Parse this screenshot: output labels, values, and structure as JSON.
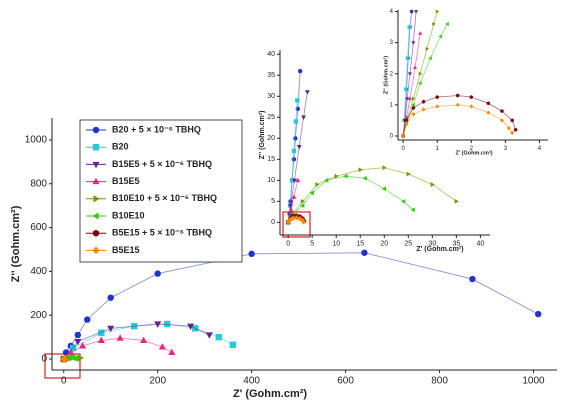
{
  "chart_data": [
    {
      "type": "scatter",
      "xlabel": "Z' (Gohm.cm²)",
      "ylabel": "Z'' (Gohm.cm²)",
      "xlim": [
        -25,
        1050
      ],
      "ylim": [
        -50,
        1100
      ],
      "xticks": [
        0,
        200,
        400,
        600,
        800,
        1000
      ],
      "yticks": [
        0,
        200,
        400,
        600,
        800,
        1000
      ],
      "legend": "upper left",
      "series": [
        {
          "name": "B20 + 5 × 10⁻⁶ TBHQ",
          "color": "#2233cc",
          "marker": "circle",
          "x": [
            0,
            5,
            15,
            30,
            50,
            100,
            200,
            400,
            640,
            870,
            1010
          ],
          "values": [
            0,
            30,
            60,
            110,
            180,
            280,
            390,
            480,
            485,
            365,
            205
          ]
        },
        {
          "name": "B20",
          "color": "#22ccdd",
          "marker": "square",
          "x": [
            0,
            20,
            80,
            150,
            220,
            280,
            330,
            360
          ],
          "values": [
            0,
            50,
            120,
            150,
            160,
            140,
            100,
            65
          ]
        },
        {
          "name": "B15E5 + 5 × 10⁻⁶ TBHQ",
          "color": "#662288",
          "marker": "triangle-down",
          "x": [
            0,
            30,
            100,
            200,
            270,
            310
          ],
          "values": [
            0,
            80,
            140,
            160,
            150,
            110
          ]
        },
        {
          "name": "B15E5",
          "color": "#ee2288",
          "marker": "triangle",
          "x": [
            0,
            15,
            40,
            80,
            120,
            170,
            210,
            230
          ],
          "values": [
            0,
            30,
            60,
            85,
            95,
            85,
            55,
            30
          ]
        },
        {
          "name": "B10E10 + 5 × 10⁻⁶ TBHQ",
          "color": "#779900",
          "marker": "triangle-right",
          "x": [
            0,
            10,
            20,
            35
          ],
          "values": [
            0,
            5,
            8,
            5
          ]
        },
        {
          "name": "B10E10",
          "color": "#33cc11",
          "marker": "triangle-left",
          "x": [
            0,
            10,
            20,
            26
          ],
          "values": [
            0,
            5,
            6,
            3
          ]
        },
        {
          "name": "B5E15 + 5 × 10⁻⁶ TBHQ",
          "color": "#7a0a0a",
          "marker": "hexagon",
          "x": [
            0,
            2,
            3.3
          ],
          "values": [
            0,
            1,
            0.3
          ]
        },
        {
          "name": "B5E15",
          "color": "#ff8800",
          "marker": "diamond",
          "x": [
            0,
            2,
            3.2
          ],
          "values": [
            0,
            0.8,
            0.1
          ]
        }
      ]
    },
    {
      "type": "scatter",
      "xlabel": "Z' (Gohm.cm²)",
      "ylabel": "Z'' (Gohm.cm²)",
      "xlim": [
        -1.7,
        42
      ],
      "ylim": [
        -3,
        41
      ],
      "xticks": [
        0,
        5,
        10,
        15,
        20,
        25,
        30,
        35,
        40
      ],
      "yticks": [
        0,
        5,
        10,
        15,
        20,
        25,
        30,
        35,
        40
      ],
      "series": [
        {
          "color": "#2233cc",
          "marker": "circle",
          "x": [
            0,
            0.3,
            0.5,
            0.8,
            1.2,
            1.5,
            2,
            2.5
          ],
          "values": [
            0,
            2,
            5,
            10,
            15,
            20,
            27,
            36
          ]
        },
        {
          "color": "#22ccdd",
          "marker": "square",
          "x": [
            0,
            0.4,
            0.8,
            1.2,
            1.6,
            1.9
          ],
          "values": [
            0,
            4,
            10,
            17,
            24,
            29
          ]
        },
        {
          "color": "#662288",
          "marker": "triangle-down",
          "x": [
            0,
            0.5,
            1.3,
            2.3,
            3.2,
            4
          ],
          "values": [
            0,
            4,
            10,
            18,
            25,
            31
          ]
        },
        {
          "color": "#ee2288",
          "marker": "triangle",
          "x": [
            0,
            0.6,
            1.2,
            2
          ],
          "values": [
            0,
            3,
            6,
            10
          ]
        },
        {
          "color": "#779900",
          "marker": "triangle-right",
          "x": [
            0,
            1,
            3,
            6,
            10,
            15,
            20,
            25,
            30,
            35
          ],
          "values": [
            0,
            2,
            5,
            9,
            11,
            12.5,
            13,
            11.5,
            9,
            5
          ]
        },
        {
          "color": "#33cc11",
          "marker": "triangle-left",
          "x": [
            0,
            1,
            3,
            5,
            8,
            12,
            16,
            20,
            24,
            26
          ],
          "values": [
            0,
            2,
            4,
            7,
            10,
            11,
            10.5,
            8,
            5,
            3
          ]
        },
        {
          "color": "#7a0a0a",
          "marker": "hexagon",
          "x": [
            0,
            0.5,
            1,
            1.7,
            2.4,
            3,
            3.3
          ],
          "values": [
            0,
            1,
            1.5,
            1.6,
            1.4,
            0.9,
            0.3
          ]
        },
        {
          "color": "#ff8800",
          "marker": "diamond",
          "x": [
            0,
            0.5,
            1,
            1.7,
            2.4,
            3,
            3.2
          ],
          "values": [
            0,
            0.7,
            1,
            1.1,
            0.9,
            0.5,
            0.1
          ]
        }
      ]
    },
    {
      "type": "scatter",
      "xlabel": "Z' (Gohm.cm²)",
      "ylabel": "Z'' (Gohm.cm²)",
      "xlim": [
        -0.15,
        4.25
      ],
      "ylim": [
        -0.13,
        4.05
      ],
      "xticks": [
        0,
        1,
        2,
        3,
        4
      ],
      "yticks": [
        0,
        1,
        2,
        3,
        4
      ],
      "series": [
        {
          "color": "#2233cc",
          "marker": "circle",
          "x": [
            0,
            0.05,
            0.1,
            0.15,
            0.2,
            0.25
          ],
          "values": [
            0,
            0.5,
            1.5,
            2.5,
            3.5,
            4
          ]
        },
        {
          "color": "#22ccdd",
          "marker": "square",
          "x": [
            0.03,
            0.08,
            0.13,
            0.18
          ],
          "values": [
            0.5,
            1.5,
            2.5,
            3.5
          ]
        },
        {
          "color": "#662288",
          "marker": "triangle-down",
          "x": [
            0,
            0.05,
            0.12,
            0.2,
            0.3,
            0.38
          ],
          "values": [
            0,
            0.5,
            1.2,
            2,
            3,
            4
          ]
        },
        {
          "color": "#ee2288",
          "marker": "triangle",
          "x": [
            0,
            0.1,
            0.2,
            0.35,
            0.5
          ],
          "values": [
            0,
            0.6,
            1.2,
            2.2,
            3.3
          ]
        },
        {
          "color": "#779900",
          "marker": "triangle-right",
          "x": [
            0,
            0.1,
            0.3,
            0.5,
            0.7,
            0.9,
            1
          ],
          "values": [
            0,
            0.5,
            1.2,
            2,
            2.8,
            3.6,
            4
          ]
        },
        {
          "color": "#33cc11",
          "marker": "triangle-left",
          "x": [
            0,
            0.1,
            0.3,
            0.5,
            0.8,
            1.1,
            1.3
          ],
          "values": [
            0,
            0.4,
            1,
            1.7,
            2.5,
            3.2,
            3.6
          ]
        },
        {
          "color": "#7a0a0a",
          "marker": "hexagon",
          "x": [
            0,
            0.1,
            0.3,
            0.6,
            1,
            1.6,
            2,
            2.5,
            2.9,
            3.2,
            3.3
          ],
          "values": [
            0,
            0.5,
            0.9,
            1.1,
            1.25,
            1.3,
            1.25,
            1.05,
            0.8,
            0.5,
            0.2
          ]
        },
        {
          "color": "#ff8800",
          "marker": "diamond",
          "x": [
            0,
            0.1,
            0.3,
            0.6,
            1,
            1.6,
            2,
            2.5,
            2.9,
            3.1,
            3.2
          ],
          "values": [
            0,
            0.4,
            0.7,
            0.85,
            0.95,
            1,
            0.95,
            0.75,
            0.5,
            0.25,
            0.1
          ]
        }
      ]
    }
  ]
}
